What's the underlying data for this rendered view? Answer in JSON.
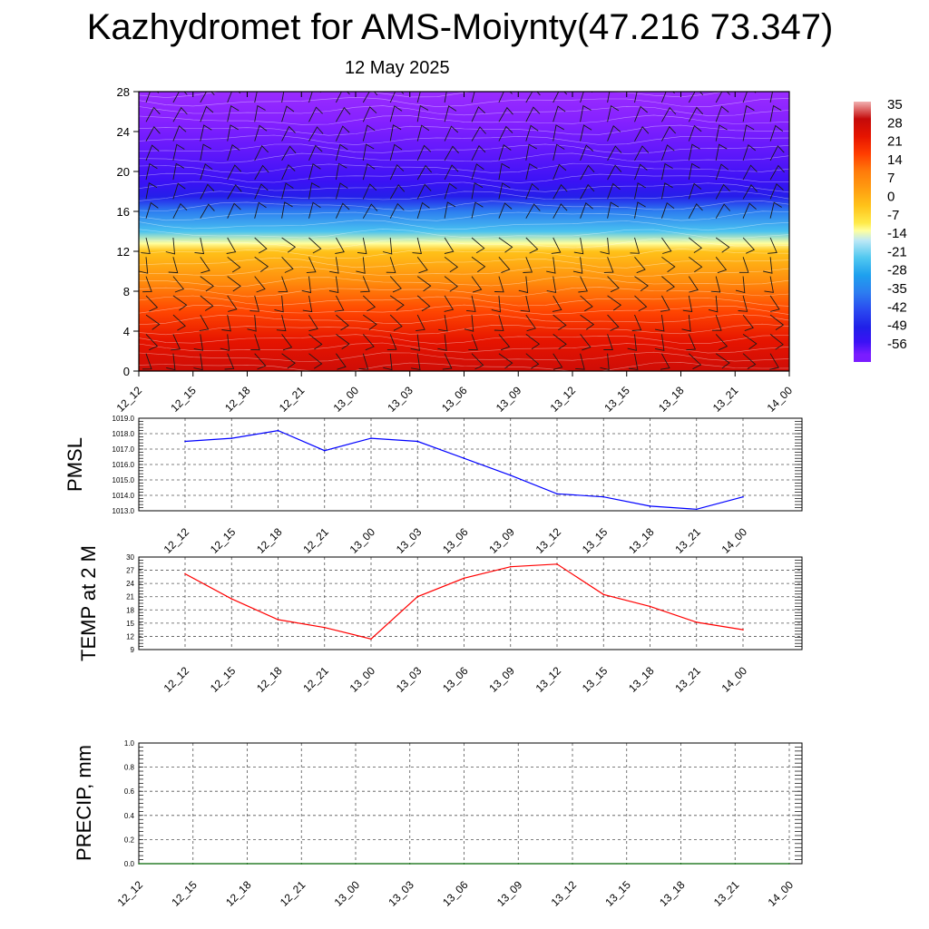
{
  "header": {
    "title": "Kazhydromet for AMS-Moiynty(47.216 73.347)",
    "subtitle": "12 May 2025"
  },
  "chart_data": [
    {
      "type": "heatmap",
      "title": "",
      "yticks": [
        "0",
        "4",
        "8",
        "12",
        "16",
        "20",
        "24",
        "28"
      ],
      "ylim": [
        0,
        28
      ],
      "xticks": [
        "12_12",
        "12_15",
        "12_18",
        "12_21",
        "13_00",
        "13_03",
        "13_06",
        "13_09",
        "13_12",
        "13_15",
        "13_18",
        "13_21",
        "14_00"
      ],
      "colorbar": {
        "labels": [
          "35",
          "28",
          "21",
          "14",
          "7",
          "0",
          "-7",
          "-14",
          "-21",
          "-28",
          "-35",
          "-42",
          "-49",
          "-56"
        ],
        "range": [
          -63,
          42
        ]
      },
      "temperature_profile": [
        {
          "level": 0,
          "value": 33
        },
        {
          "level": 3,
          "value": 28
        },
        {
          "level": 6,
          "value": 20
        },
        {
          "level": 9,
          "value": 10
        },
        {
          "level": 12,
          "value": 0
        },
        {
          "level": 12.8,
          "value": -10
        },
        {
          "level": 14,
          "value": -22
        },
        {
          "level": 16,
          "value": -35
        },
        {
          "level": 17.5,
          "value": -50
        },
        {
          "level": 19,
          "value": -55
        },
        {
          "level": 22,
          "value": -58
        },
        {
          "level": 25,
          "value": -62
        },
        {
          "level": 28,
          "value": -66
        }
      ],
      "wind_barbs": true
    },
    {
      "type": "line",
      "ylabel": "PMSL",
      "xticks": [
        "12_12",
        "12_15",
        "12_18",
        "12_21",
        "13_00",
        "13_03",
        "13_06",
        "13_09",
        "13_12",
        "13_15",
        "13_18",
        "13_21",
        "14_00"
      ],
      "ylim": [
        1013.0,
        1019.0
      ],
      "yticks": [
        "1013.0",
        "1014.0",
        "1015.0",
        "1016.0",
        "1017.0",
        "1018.0",
        "1019.0"
      ],
      "color": "#0000ff",
      "values": [
        1017.5,
        1017.7,
        1018.2,
        1016.9,
        1017.7,
        1017.5,
        1016.4,
        1015.3,
        1014.1,
        1013.9,
        1013.3,
        1013.1,
        1013.9
      ]
    },
    {
      "type": "line",
      "ylabel": "TEMP at 2 M",
      "xticks": [
        "12_12",
        "12_15",
        "12_18",
        "12_21",
        "13_00",
        "13_03",
        "13_06",
        "13_09",
        "13_12",
        "13_15",
        "13_18",
        "13_21",
        "14_00"
      ],
      "ylim": [
        9,
        30
      ],
      "yticks": [
        "9",
        "12",
        "15",
        "18",
        "21",
        "24",
        "27",
        "30"
      ],
      "color": "#ff0000",
      "values": [
        26.2,
        20.5,
        15.8,
        14.0,
        11.4,
        21.0,
        25.2,
        27.8,
        28.4,
        21.5,
        18.8,
        15.2,
        13.5
      ]
    },
    {
      "type": "line",
      "ylabel": "PRECIP, mm",
      "xticks": [
        "12_12",
        "12_15",
        "12_18",
        "12_21",
        "13_00",
        "13_03",
        "13_06",
        "13_09",
        "13_12",
        "13_15",
        "13_18",
        "13_21",
        "14_00"
      ],
      "ylim": [
        0.0,
        1.0
      ],
      "yticks": [
        "0.0",
        "0.2",
        "0.4",
        "0.6",
        "0.8",
        "1.0"
      ],
      "color": "#006400",
      "values": [
        0,
        0,
        0,
        0,
        0,
        0,
        0,
        0,
        0,
        0,
        0,
        0,
        0
      ]
    }
  ]
}
